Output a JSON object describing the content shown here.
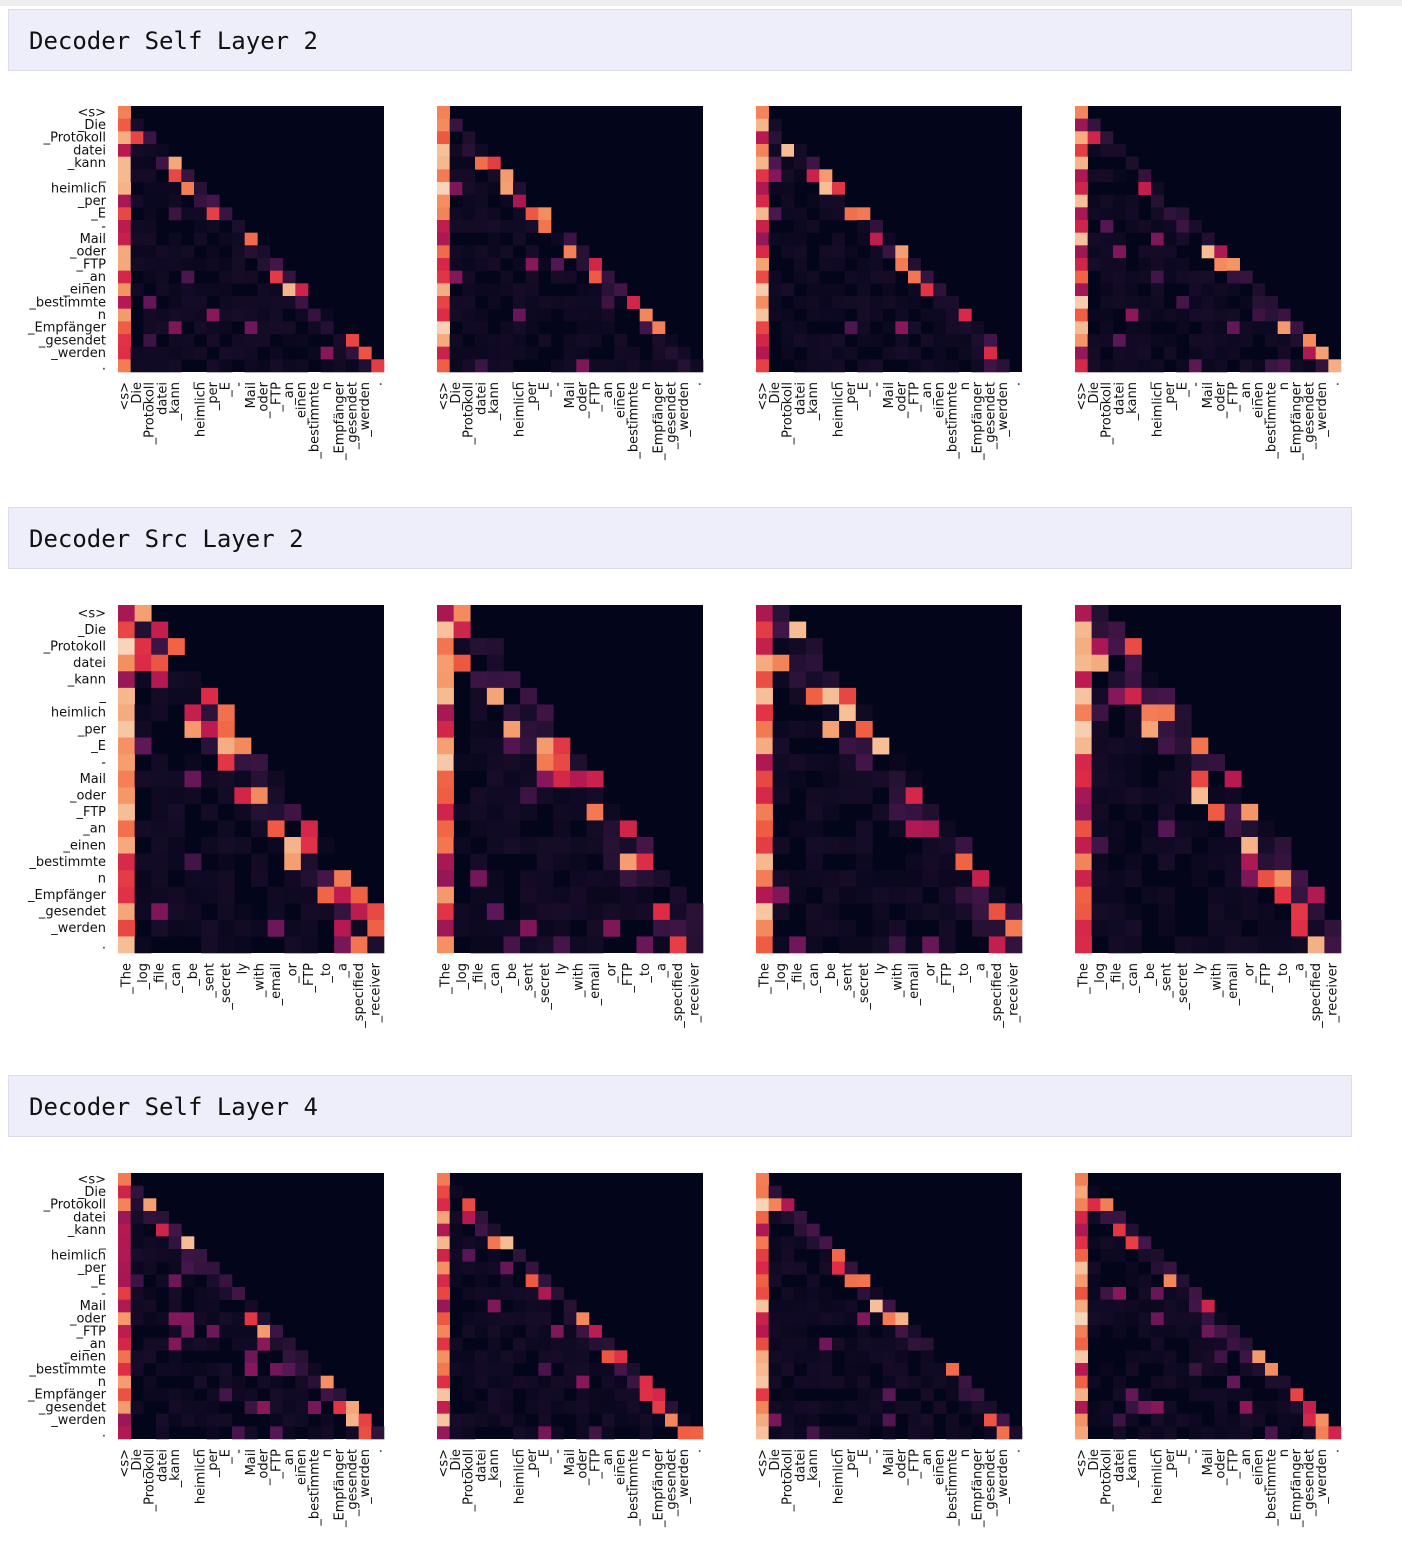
{
  "sections": [
    {
      "title": "Decoder Self Layer 2",
      "kind": "self",
      "seed": 11
    },
    {
      "title": "Decoder Src Layer 2",
      "kind": "src",
      "seed": 23
    },
    {
      "title": "Decoder Self Layer 4",
      "kind": "self",
      "seed": 37
    }
  ],
  "tokens": {
    "target": [
      "<s>",
      "_Die",
      "_Protokoll",
      "datei",
      "_kann",
      "_",
      "heimlich",
      "_per",
      "_E",
      "-",
      "Mail",
      "_oder",
      "_FTP",
      "_an",
      "_einen",
      "_bestimmte",
      "n",
      "_Empfänger",
      "_gesendet",
      "_werden",
      "."
    ],
    "source": [
      "_The",
      "_log",
      "_file",
      "_can",
      "_be",
      "_sent",
      "_secret",
      "ly",
      "_with",
      "_email",
      "_or",
      "_FTP",
      "_to",
      "_a",
      "_specified",
      "_receiver"
    ]
  },
  "chart_data": [
    {
      "type": "heatmap",
      "title": "Decoder Self Layer 2",
      "panels": 4,
      "rows": "tokens.target",
      "columns": "tokens.target",
      "value_range": [
        0,
        1
      ],
      "colormap": "rocket"
    },
    {
      "type": "heatmap",
      "title": "Decoder Src Layer 2",
      "panels": 4,
      "rows": "tokens.target",
      "columns": "tokens.source",
      "value_range": [
        0,
        1
      ],
      "colormap": "rocket"
    },
    {
      "type": "heatmap",
      "title": "Decoder Self Layer 4",
      "panels": 4,
      "rows": "tokens.target",
      "columns": "tokens.target",
      "value_range": [
        0,
        1
      ],
      "colormap": "rocket"
    }
  ]
}
